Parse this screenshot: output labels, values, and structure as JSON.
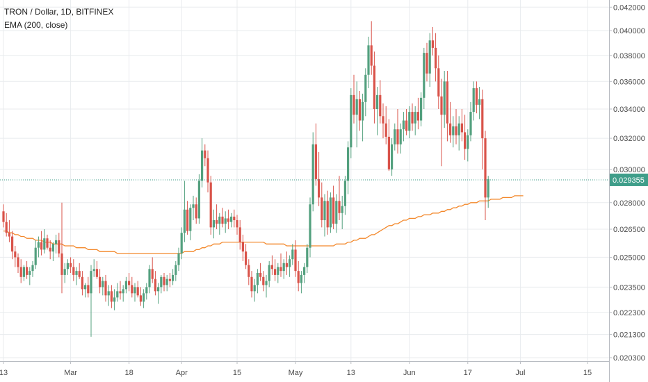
{
  "legend": {
    "symbol": "TRON / Dollar, 1D, BITFINEX",
    "indicator": "EMA (200, close)"
  },
  "colors": {
    "up": "#53a07e",
    "down": "#d9534a",
    "ema": "#f3882b",
    "price_line": "#3f9e8a",
    "grid": "#e8ebee",
    "axis_text": "#4a4a4a"
  },
  "chart_data": {
    "type": "candlestick",
    "y_axis": {
      "scale": "log",
      "range": [
        0.0203,
        0.0422
      ],
      "tick_labels": [
        "0.042000",
        "0.040000",
        "0.038000",
        "0.036000",
        "0.034000",
        "0.032000",
        "0.030000",
        "0.028000",
        "0.026500",
        "0.025000",
        "0.023500",
        "0.022300",
        "0.021300",
        "0.020300"
      ],
      "tick_values": [
        0.042,
        0.04,
        0.038,
        0.036,
        0.034,
        0.032,
        0.03,
        0.028,
        0.0265,
        0.025,
        0.0235,
        0.0223,
        0.0213,
        0.0203
      ]
    },
    "x_axis": {
      "tick_labels": [
        "13",
        "Mar",
        "18",
        "Apr",
        "15",
        "May",
        "13",
        "Jun",
        "17",
        "Jul",
        "15"
      ],
      "tick_index": [
        0,
        23,
        43,
        61,
        80,
        100,
        119,
        139,
        159,
        177,
        200
      ]
    },
    "last_price_label": "0.029355",
    "last_price": 0.029355,
    "candles": [
      [
        0.0275,
        0.0279,
        0.0266,
        0.0269
      ],
      [
        0.0269,
        0.0274,
        0.0261,
        0.0263
      ],
      [
        0.0263,
        0.027,
        0.0258,
        0.0261
      ],
      [
        0.0261,
        0.0264,
        0.0249,
        0.0253
      ],
      [
        0.0253,
        0.0256,
        0.0245,
        0.025
      ],
      [
        0.025,
        0.0252,
        0.0242,
        0.0245
      ],
      [
        0.0245,
        0.0249,
        0.0237,
        0.024
      ],
      [
        0.024,
        0.0246,
        0.0238,
        0.0245
      ],
      [
        0.0245,
        0.0248,
        0.0239,
        0.0241
      ],
      [
        0.0241,
        0.0245,
        0.0236,
        0.0243
      ],
      [
        0.0243,
        0.0248,
        0.024,
        0.0246
      ],
      [
        0.0246,
        0.0259,
        0.0244,
        0.0255
      ],
      [
        0.0255,
        0.0261,
        0.025,
        0.0258
      ],
      [
        0.0258,
        0.0264,
        0.0251,
        0.0254
      ],
      [
        0.0254,
        0.0265,
        0.0252,
        0.026
      ],
      [
        0.026,
        0.0262,
        0.0254,
        0.0255
      ],
      [
        0.0255,
        0.0259,
        0.0249,
        0.0253
      ],
      [
        0.0253,
        0.0258,
        0.0248,
        0.0257
      ],
      [
        0.0257,
        0.0262,
        0.0252,
        0.0259
      ],
      [
        0.0259,
        0.0263,
        0.025,
        0.0252
      ],
      [
        0.0252,
        0.028,
        0.0232,
        0.0241
      ],
      [
        0.0241,
        0.0247,
        0.0237,
        0.0244
      ],
      [
        0.0244,
        0.0249,
        0.0241,
        0.0247
      ],
      [
        0.0247,
        0.025,
        0.0242,
        0.0245
      ],
      [
        0.0245,
        0.0249,
        0.0238,
        0.0241
      ],
      [
        0.0241,
        0.0245,
        0.0236,
        0.0243
      ],
      [
        0.0243,
        0.0247,
        0.0239,
        0.024
      ],
      [
        0.024,
        0.0243,
        0.0231,
        0.0234
      ],
      [
        0.0234,
        0.0237,
        0.023,
        0.0236
      ],
      [
        0.0236,
        0.024,
        0.023,
        0.0232
      ],
      [
        0.0232,
        0.0246,
        0.0212,
        0.0243
      ],
      [
        0.0243,
        0.0249,
        0.024,
        0.0244
      ],
      [
        0.0244,
        0.0248,
        0.0239,
        0.024
      ],
      [
        0.024,
        0.0244,
        0.0232,
        0.0235
      ],
      [
        0.0235,
        0.024,
        0.0231,
        0.0238
      ],
      [
        0.0238,
        0.0241,
        0.0228,
        0.0231
      ],
      [
        0.0231,
        0.0236,
        0.0226,
        0.0233
      ],
      [
        0.0233,
        0.0236,
        0.0225,
        0.0228
      ],
      [
        0.0228,
        0.0234,
        0.0224,
        0.023
      ],
      [
        0.023,
        0.0237,
        0.0228,
        0.0233
      ],
      [
        0.0233,
        0.0238,
        0.0229,
        0.0232
      ],
      [
        0.0232,
        0.0236,
        0.0228,
        0.0234
      ],
      [
        0.0234,
        0.024,
        0.0232,
        0.0238
      ],
      [
        0.0238,
        0.0242,
        0.0233,
        0.0236
      ],
      [
        0.0236,
        0.024,
        0.023,
        0.0232
      ],
      [
        0.0232,
        0.0237,
        0.0228,
        0.0235
      ],
      [
        0.0235,
        0.0238,
        0.023,
        0.0231
      ],
      [
        0.0231,
        0.0235,
        0.0226,
        0.0228
      ],
      [
        0.0228,
        0.0234,
        0.0225,
        0.0232
      ],
      [
        0.0232,
        0.0237,
        0.0229,
        0.0235
      ],
      [
        0.0235,
        0.0246,
        0.0232,
        0.0244
      ],
      [
        0.0244,
        0.025,
        0.0237,
        0.0239
      ],
      [
        0.0239,
        0.0243,
        0.0231,
        0.0233
      ],
      [
        0.0233,
        0.0237,
        0.0227,
        0.0235
      ],
      [
        0.0235,
        0.0241,
        0.0232,
        0.024
      ],
      [
        0.024,
        0.0242,
        0.0233,
        0.0236
      ],
      [
        0.0236,
        0.0241,
        0.0233,
        0.0239
      ],
      [
        0.0239,
        0.0242,
        0.0235,
        0.0238
      ],
      [
        0.0238,
        0.0244,
        0.0236,
        0.0241
      ],
      [
        0.0241,
        0.0248,
        0.0238,
        0.0246
      ],
      [
        0.0246,
        0.0255,
        0.0243,
        0.0252
      ],
      [
        0.0252,
        0.0266,
        0.0249,
        0.0263
      ],
      [
        0.0263,
        0.0293,
        0.0258,
        0.0276
      ],
      [
        0.0276,
        0.0281,
        0.0262,
        0.0264
      ],
      [
        0.0264,
        0.0279,
        0.0259,
        0.0277
      ],
      [
        0.0277,
        0.0284,
        0.027,
        0.0279
      ],
      [
        0.0279,
        0.0283,
        0.0268,
        0.0271
      ],
      [
        0.0271,
        0.0297,
        0.0268,
        0.0293
      ],
      [
        0.0293,
        0.032,
        0.0289,
        0.0312
      ],
      [
        0.0312,
        0.0316,
        0.0302,
        0.0307
      ],
      [
        0.0307,
        0.0312,
        0.0286,
        0.0292
      ],
      [
        0.0292,
        0.0296,
        0.0262,
        0.0266
      ],
      [
        0.0266,
        0.0276,
        0.026,
        0.027
      ],
      [
        0.027,
        0.0279,
        0.0265,
        0.0268
      ],
      [
        0.0268,
        0.0274,
        0.0262,
        0.0272
      ],
      [
        0.0272,
        0.0277,
        0.0266,
        0.0268
      ],
      [
        0.0268,
        0.0275,
        0.0263,
        0.0271
      ],
      [
        0.0271,
        0.0276,
        0.0265,
        0.0269
      ],
      [
        0.0269,
        0.0274,
        0.0266,
        0.0272
      ],
      [
        0.0272,
        0.0276,
        0.0266,
        0.027
      ],
      [
        0.027,
        0.0273,
        0.0262,
        0.0266
      ],
      [
        0.0266,
        0.027,
        0.0254,
        0.0258
      ],
      [
        0.0258,
        0.0262,
        0.0248,
        0.0253
      ],
      [
        0.0253,
        0.0257,
        0.0244,
        0.0246
      ],
      [
        0.0246,
        0.0249,
        0.0236,
        0.024
      ],
      [
        0.024,
        0.0243,
        0.023,
        0.0233
      ],
      [
        0.0233,
        0.0239,
        0.0228,
        0.0236
      ],
      [
        0.0236,
        0.0244,
        0.0232,
        0.0242
      ],
      [
        0.0242,
        0.0247,
        0.0238,
        0.024
      ],
      [
        0.024,
        0.0243,
        0.0233,
        0.0236
      ],
      [
        0.0236,
        0.0241,
        0.023,
        0.0238
      ],
      [
        0.0238,
        0.0248,
        0.0235,
        0.0246
      ],
      [
        0.0246,
        0.0251,
        0.0241,
        0.0244
      ],
      [
        0.0244,
        0.0249,
        0.0238,
        0.0241
      ],
      [
        0.0241,
        0.0247,
        0.0237,
        0.0245
      ],
      [
        0.0245,
        0.0252,
        0.024,
        0.0243
      ],
      [
        0.0243,
        0.0249,
        0.0239,
        0.0247
      ],
      [
        0.0247,
        0.0253,
        0.0241,
        0.0245
      ],
      [
        0.0245,
        0.0251,
        0.024,
        0.0249
      ],
      [
        0.0249,
        0.0257,
        0.0246,
        0.0254
      ],
      [
        0.0254,
        0.0259,
        0.024,
        0.0243
      ],
      [
        0.0243,
        0.0248,
        0.0233,
        0.0237
      ],
      [
        0.0237,
        0.0243,
        0.0232,
        0.0241
      ],
      [
        0.0241,
        0.0247,
        0.0237,
        0.0245
      ],
      [
        0.0245,
        0.0257,
        0.0242,
        0.0255
      ],
      [
        0.0255,
        0.0283,
        0.025,
        0.0279
      ],
      [
        0.0279,
        0.0324,
        0.0275,
        0.0316
      ],
      [
        0.0316,
        0.033,
        0.029,
        0.0294
      ],
      [
        0.0294,
        0.0311,
        0.0278,
        0.0283
      ],
      [
        0.0283,
        0.0292,
        0.0266,
        0.027
      ],
      [
        0.027,
        0.0285,
        0.0261,
        0.0281
      ],
      [
        0.0281,
        0.0287,
        0.0262,
        0.0266
      ],
      [
        0.0266,
        0.0286,
        0.0263,
        0.0283
      ],
      [
        0.0283,
        0.029,
        0.0265,
        0.0268
      ],
      [
        0.0268,
        0.0285,
        0.0263,
        0.0281
      ],
      [
        0.0281,
        0.0296,
        0.027,
        0.0274
      ],
      [
        0.0274,
        0.0284,
        0.0265,
        0.0278
      ],
      [
        0.0278,
        0.0296,
        0.0273,
        0.0293
      ],
      [
        0.0293,
        0.0318,
        0.0285,
        0.0314
      ],
      [
        0.0314,
        0.0355,
        0.0307,
        0.035
      ],
      [
        0.035,
        0.0365,
        0.033,
        0.0336
      ],
      [
        0.0336,
        0.036,
        0.0314,
        0.0347
      ],
      [
        0.0347,
        0.0353,
        0.0325,
        0.0332
      ],
      [
        0.0332,
        0.0351,
        0.0318,
        0.0345
      ],
      [
        0.0345,
        0.037,
        0.0335,
        0.0365
      ],
      [
        0.0365,
        0.0395,
        0.0355,
        0.0388
      ],
      [
        0.0388,
        0.0408,
        0.0365,
        0.0372
      ],
      [
        0.0372,
        0.0383,
        0.033,
        0.034
      ],
      [
        0.034,
        0.0356,
        0.0322,
        0.035
      ],
      [
        0.035,
        0.0361,
        0.033,
        0.0335
      ],
      [
        0.0335,
        0.0344,
        0.032,
        0.033
      ],
      [
        0.033,
        0.0342,
        0.0316,
        0.0321
      ],
      [
        0.0321,
        0.0333,
        0.0299,
        0.03
      ],
      [
        0.03,
        0.032,
        0.0296,
        0.0316
      ],
      [
        0.0316,
        0.033,
        0.0312,
        0.0326
      ],
      [
        0.0326,
        0.034,
        0.031,
        0.0316
      ],
      [
        0.0316,
        0.033,
        0.031,
        0.0326
      ],
      [
        0.0326,
        0.0338,
        0.0318,
        0.0332
      ],
      [
        0.0332,
        0.034,
        0.0322,
        0.0325
      ],
      [
        0.0325,
        0.0342,
        0.032,
        0.0338
      ],
      [
        0.0338,
        0.0344,
        0.0325,
        0.033
      ],
      [
        0.033,
        0.0342,
        0.0322,
        0.0338
      ],
      [
        0.0338,
        0.0348,
        0.0326,
        0.0332
      ],
      [
        0.0332,
        0.0352,
        0.0328,
        0.0348
      ],
      [
        0.0348,
        0.0386,
        0.034,
        0.0382
      ],
      [
        0.0382,
        0.039,
        0.036,
        0.0366
      ],
      [
        0.0366,
        0.0398,
        0.0356,
        0.0392
      ],
      [
        0.0392,
        0.0403,
        0.038,
        0.0386
      ],
      [
        0.0386,
        0.0398,
        0.036,
        0.037
      ],
      [
        0.037,
        0.038,
        0.034,
        0.0349
      ],
      [
        0.0349,
        0.0362,
        0.0302,
        0.0336
      ],
      [
        0.0336,
        0.0368,
        0.0327,
        0.036
      ],
      [
        0.036,
        0.0368,
        0.0318,
        0.033
      ],
      [
        0.033,
        0.0345,
        0.0317,
        0.0322
      ],
      [
        0.0322,
        0.0335,
        0.0314,
        0.0328
      ],
      [
        0.0328,
        0.034,
        0.0316,
        0.0322
      ],
      [
        0.0322,
        0.0335,
        0.0312,
        0.033
      ],
      [
        0.033,
        0.034,
        0.0318,
        0.0324
      ],
      [
        0.0324,
        0.0336,
        0.0306,
        0.0313
      ],
      [
        0.0313,
        0.0326,
        0.0305,
        0.0322
      ],
      [
        0.0322,
        0.0345,
        0.0318,
        0.0338
      ],
      [
        0.0338,
        0.036,
        0.0332,
        0.0355
      ],
      [
        0.0355,
        0.036,
        0.0337,
        0.0343
      ],
      [
        0.0343,
        0.0356,
        0.0333,
        0.0347
      ],
      [
        0.0347,
        0.0354,
        0.03,
        0.032
      ],
      [
        0.032,
        0.0325,
        0.027,
        0.0283
      ],
      [
        0.0283,
        0.0296,
        0.0277,
        0.0294
      ]
    ],
    "ema": [
      0.0264,
      0.0264,
      0.0263,
      0.0263,
      0.0262,
      0.0262,
      0.0261,
      0.0261,
      0.026,
      0.026,
      0.026,
      0.0259,
      0.0259,
      0.0259,
      0.0258,
      0.0258,
      0.0258,
      0.0257,
      0.0257,
      0.0257,
      0.0257,
      0.0256,
      0.0256,
      0.0256,
      0.0256,
      0.0255,
      0.0255,
      0.0255,
      0.0255,
      0.0254,
      0.0254,
      0.0254,
      0.0254,
      0.0253,
      0.0253,
      0.0253,
      0.0253,
      0.0253,
      0.0253,
      0.0252,
      0.0252,
      0.0252,
      0.0252,
      0.0252,
      0.0252,
      0.0252,
      0.0252,
      0.0252,
      0.0252,
      0.0252,
      0.0252,
      0.0252,
      0.0252,
      0.0252,
      0.0252,
      0.0252,
      0.0252,
      0.0252,
      0.0252,
      0.0252,
      0.0252,
      0.0252,
      0.0253,
      0.0253,
      0.0253,
      0.0253,
      0.0254,
      0.0254,
      0.0255,
      0.0255,
      0.0256,
      0.0256,
      0.0257,
      0.0257,
      0.0257,
      0.0258,
      0.0258,
      0.0258,
      0.0258,
      0.0258,
      0.0258,
      0.0258,
      0.0258,
      0.0258,
      0.0258,
      0.0258,
      0.0258,
      0.0258,
      0.0258,
      0.0258,
      0.0257,
      0.0257,
      0.0257,
      0.0257,
      0.0257,
      0.0257,
      0.0257,
      0.0256,
      0.0256,
      0.0256,
      0.0256,
      0.0256,
      0.0256,
      0.0256,
      0.0256,
      0.0256,
      0.0256,
      0.0256,
      0.0256,
      0.0256,
      0.0256,
      0.0256,
      0.0256,
      0.0256,
      0.0257,
      0.0257,
      0.0257,
      0.0257,
      0.0258,
      0.0258,
      0.0259,
      0.0259,
      0.026,
      0.026,
      0.026,
      0.0261,
      0.0262,
      0.0262,
      0.0263,
      0.0264,
      0.0265,
      0.0266,
      0.0267,
      0.0267,
      0.0268,
      0.0268,
      0.0269,
      0.027,
      0.027,
      0.0271,
      0.0271,
      0.0271,
      0.0272,
      0.0272,
      0.0273,
      0.0273,
      0.0273,
      0.0274,
      0.0274,
      0.0274,
      0.0275,
      0.0275,
      0.0276,
      0.0276,
      0.0277,
      0.0277,
      0.0278,
      0.0278,
      0.0279,
      0.0279,
      0.028,
      0.028,
      0.028,
      0.0281,
      0.0281,
      0.0281,
      0.0281,
      0.0282,
      0.0282,
      0.0282,
      0.0282,
      0.0283,
      0.0283,
      0.0283,
      0.0283,
      0.0284,
      0.0284,
      0.0284,
      0.0284
    ]
  }
}
